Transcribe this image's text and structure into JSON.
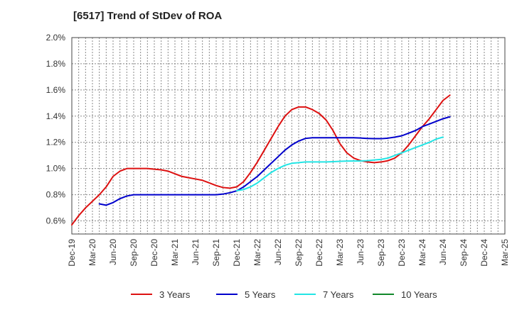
{
  "title": "[6517]  Trend of StDev of ROA",
  "chart_data": {
    "type": "line",
    "title": "[6517]  Trend of StDev of ROA",
    "xlabel": "",
    "ylabel": "",
    "x_ticks": [
      "Dec-19",
      "Mar-20",
      "Jun-20",
      "Sep-20",
      "Dec-20",
      "Mar-21",
      "Jun-21",
      "Sep-21",
      "Dec-21",
      "Mar-22",
      "Jun-22",
      "Sep-22",
      "Dec-22",
      "Mar-23",
      "Jun-23",
      "Sep-23",
      "Dec-23",
      "Mar-24",
      "Jun-24",
      "Sep-24",
      "Dec-24",
      "Mar-25"
    ],
    "y_ticks": [
      "0.6%",
      "0.8%",
      "1.0%",
      "1.2%",
      "1.4%",
      "1.6%",
      "1.8%",
      "2.0%"
    ],
    "ylim": [
      0.5,
      2.0
    ],
    "grid": true,
    "legend_position": "bottom",
    "series": [
      {
        "name": "3 Years",
        "color": "#dd1111",
        "start_index": 0,
        "values": [
          0.57,
          0.64,
          0.7,
          0.75,
          0.8,
          0.86,
          0.94,
          0.98,
          1.0,
          1.0,
          1.0,
          1.0,
          0.995,
          0.99,
          0.98,
          0.96,
          0.94,
          0.93,
          0.92,
          0.91,
          0.89,
          0.87,
          0.855,
          0.85,
          0.86,
          0.9,
          0.97,
          1.05,
          1.14,
          1.23,
          1.32,
          1.4,
          1.45,
          1.47,
          1.47,
          1.45,
          1.42,
          1.37,
          1.29,
          1.19,
          1.12,
          1.08,
          1.06,
          1.05,
          1.045,
          1.05,
          1.06,
          1.08,
          1.12,
          1.18,
          1.25,
          1.32,
          1.38,
          1.45,
          1.52,
          1.56
        ]
      },
      {
        "name": "5 Years",
        "color": "#0000cc",
        "start_index": 4,
        "values": [
          0.73,
          0.72,
          0.74,
          0.77,
          0.79,
          0.8,
          0.8,
          0.8,
          0.8,
          0.8,
          0.8,
          0.8,
          0.8,
          0.8,
          0.8,
          0.8,
          0.8,
          0.8,
          0.805,
          0.815,
          0.83,
          0.86,
          0.9,
          0.94,
          0.99,
          1.04,
          1.09,
          1.14,
          1.18,
          1.21,
          1.23,
          1.235,
          1.235,
          1.235,
          1.235,
          1.235,
          1.235,
          1.235,
          1.233,
          1.23,
          1.228,
          1.228,
          1.232,
          1.24,
          1.25,
          1.27,
          1.29,
          1.32,
          1.34,
          1.36,
          1.38,
          1.395
        ]
      },
      {
        "name": "7 Years",
        "color": "#22e5e5",
        "start_index": 24,
        "values": [
          0.83,
          0.84,
          0.86,
          0.89,
          0.93,
          0.97,
          1.0,
          1.025,
          1.04,
          1.045,
          1.05,
          1.05,
          1.05,
          1.05,
          1.052,
          1.055,
          1.057,
          1.058,
          1.058,
          1.06,
          1.065,
          1.07,
          1.08,
          1.1,
          1.12,
          1.14,
          1.16,
          1.18,
          1.2,
          1.225,
          1.24
        ]
      },
      {
        "name": "10 Years",
        "color": "#11882a",
        "start_index": 0,
        "values": []
      }
    ]
  }
}
